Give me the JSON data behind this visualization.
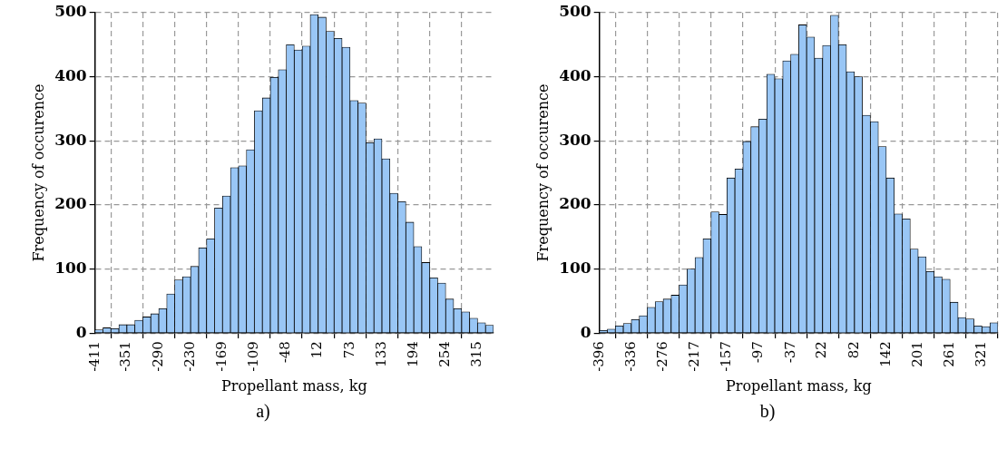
{
  "chart_data": [
    {
      "type": "histogram",
      "xlabel": "Propellant mass, kg",
      "ylabel": "Frequency of occurence",
      "annotations": [
        "a)"
      ],
      "color": "#99c6f5",
      "grid": true,
      "bins": [
        -411,
        -395.875,
        -380.75,
        -365.625,
        -350.5,
        -335.375,
        -320.25,
        -305.125,
        -290,
        -274.875,
        -259.75,
        -244.625,
        -229.5,
        -214.375,
        -199.25,
        -184.125,
        -169,
        -153.875,
        -138.75,
        -123.625,
        -108.5,
        -93.375,
        -78.25,
        -63.125,
        -48,
        -32.875,
        -17.75,
        -2.625,
        12.5,
        27.625,
        42.75,
        57.875,
        73,
        88.125,
        103.25,
        118.375,
        133.5,
        148.625,
        163.75,
        178.875,
        194,
        209.125,
        224.25,
        239.375,
        254.5,
        269.625,
        284.75,
        299.875,
        315,
        330.125,
        345.25
      ],
      "values": [
        5,
        8,
        7,
        13,
        13,
        20,
        25,
        30,
        38,
        61,
        83,
        88,
        104,
        133,
        147,
        195,
        214,
        258,
        261,
        286,
        347,
        367,
        399,
        411,
        450,
        442,
        448,
        497,
        493,
        471,
        460,
        446,
        363,
        359,
        297,
        303,
        272,
        218,
        205,
        173,
        135,
        110,
        86,
        78,
        53,
        38,
        33,
        23,
        16,
        12
      ],
      "xlim": [
        -411,
        345.25
      ],
      "xticks": [
        -411,
        -351,
        -290,
        -230,
        -169,
        -109,
        -48,
        12,
        73,
        133,
        194,
        254,
        315
      ],
      "ylim": [
        0,
        500
      ],
      "yticks": [
        0,
        100,
        200,
        300,
        400,
        500
      ]
    },
    {
      "type": "histogram",
      "xlabel": "Propellant mass, kg",
      "ylabel": "Frequency of occurence",
      "annotations": [
        "b)"
      ],
      "color": "#99c6f5",
      "grid": true,
      "bins": [
        -396,
        -381.1,
        -366.1,
        -351.2,
        -336.2,
        -321.3,
        -306.4,
        -291.4,
        -276.5,
        -261.5,
        -246.6,
        -231.7,
        -216.7,
        -201.8,
        -186.8,
        -171.9,
        -157,
        -142,
        -127.1,
        -112.1,
        -97.2,
        -82.3,
        -67.3,
        -52.4,
        -37.4,
        -22.5,
        -7.6,
        7.4,
        22.3,
        37.3,
        52.2,
        67.1,
        82.1,
        97,
        112,
        126.9,
        141.8,
        156.8,
        171.7,
        186.7,
        201.6,
        216.5,
        231.5,
        246.4,
        261.4,
        276.3,
        291.2,
        306.2,
        321.1,
        336.1,
        351
      ],
      "values": [
        4,
        6,
        11,
        15,
        21,
        27,
        40,
        49,
        53,
        59,
        75,
        100,
        118,
        147,
        189,
        185,
        242,
        256,
        299,
        322,
        334,
        404,
        397,
        425,
        435,
        481,
        462,
        429,
        449,
        496,
        450,
        408,
        400,
        340,
        330,
        291,
        242,
        186,
        178,
        131,
        119,
        96,
        88,
        84,
        48,
        24,
        22,
        11,
        10,
        16
      ],
      "xlim": [
        -396,
        351
      ],
      "xticks": [
        -396,
        -336,
        -276,
        -217,
        -157,
        -97,
        -37,
        22,
        82,
        142,
        201,
        261,
        321
      ],
      "ylim": [
        0,
        500
      ],
      "yticks": [
        0,
        100,
        200,
        300,
        400,
        500
      ]
    }
  ]
}
